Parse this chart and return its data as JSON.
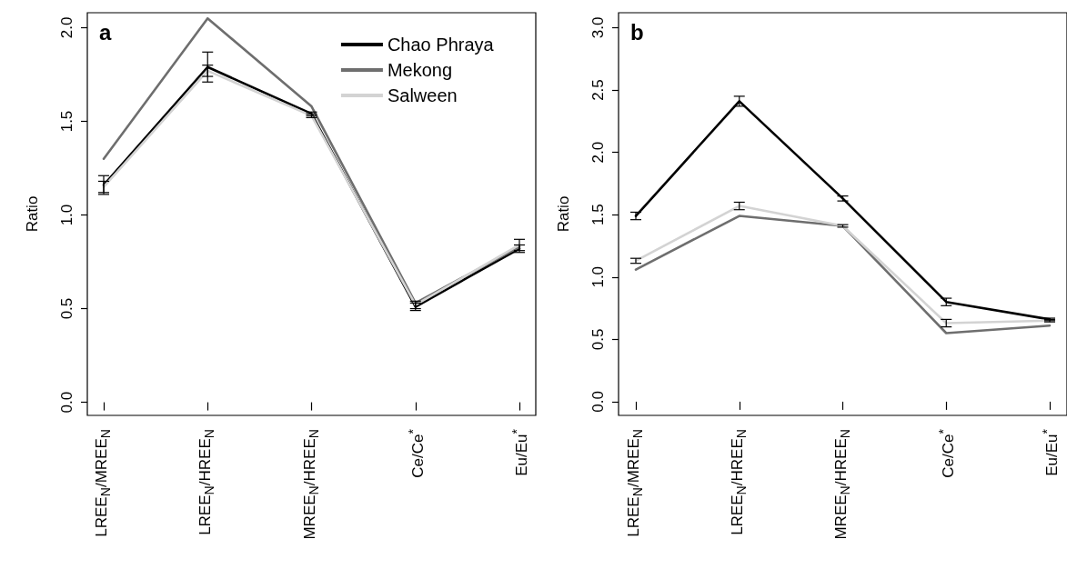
{
  "chart_data": [
    {
      "type": "line",
      "title": "a",
      "ylabel": "Ratio",
      "legend": "top right",
      "grid": false,
      "categories": [
        "LREE$_{N}$/MREE$_{N}$",
        "LREE$_{N}$/HREE$_{N}$",
        "MREE$_{N}$/HREE$_{N}$",
        "Ce/Ce$^{*}$",
        "Eu/Eu$^{*}$"
      ],
      "ylim": [
        -0.07,
        2.08
      ],
      "yticks": [
        {
          "value": 0,
          "label": "0.0"
        },
        {
          "value": 0.5,
          "label": "0.5"
        },
        {
          "value": 1,
          "label": "1.0"
        },
        {
          "value": 1.5,
          "label": "1.5"
        },
        {
          "value": 2,
          "label": "2.0"
        }
      ],
      "series": [
        {
          "name": "Chao Phraya",
          "color": "#000000",
          "values": [
            1.16,
            1.79,
            1.54,
            0.51,
            0.82
          ],
          "errors": [
            0.05,
            0.08,
            0.01,
            0.02,
            0.02
          ]
        },
        {
          "name": "Mekong",
          "color": "#6e6e6e",
          "values": [
            1.3,
            2.05,
            1.58,
            0.53,
            0.83
          ]
        },
        {
          "name": "Salween",
          "color": "#d3d3d3",
          "values": [
            1.15,
            1.77,
            1.53,
            0.52,
            0.84
          ],
          "errors": [
            0.03,
            0.03,
            0.01,
            0.02,
            0.03
          ]
        }
      ]
    },
    {
      "type": "line",
      "title": "b",
      "ylabel": "Ratio",
      "grid": false,
      "categories": [
        "LREE$_{N}$/MREE$_{N}$",
        "LREE$_{N}$/HREE$_{N}$",
        "MREE$_{N}$/HREE$_{N}$",
        "Ce/Ce$^{*}$",
        "Eu/Eu$^{*}$"
      ],
      "ylim": [
        -0.11,
        3.12
      ],
      "yticks": [
        {
          "value": 0,
          "label": "0.0"
        },
        {
          "value": 0.5,
          "label": "0.5"
        },
        {
          "value": 1,
          "label": "1.0"
        },
        {
          "value": 1.5,
          "label": "1.5"
        },
        {
          "value": 2,
          "label": "2.0"
        },
        {
          "value": 2.5,
          "label": "2.5"
        },
        {
          "value": 3,
          "label": "3.0"
        }
      ],
      "series": [
        {
          "color": "#000000",
          "values": [
            1.49,
            2.41,
            1.63,
            0.8,
            0.66
          ],
          "errors": [
            0.03,
            0.04,
            0.02,
            0.03,
            0.01
          ]
        },
        {
          "color": "#6e6e6e",
          "values": [
            1.06,
            1.49,
            1.41,
            0.55,
            0.61
          ]
        },
        {
          "color": "#d3d3d3",
          "values": [
            1.13,
            1.57,
            1.41,
            0.63,
            0.65
          ],
          "errors": [
            0.02,
            0.03,
            0.01,
            0.03,
            0.01
          ]
        }
      ]
    }
  ]
}
